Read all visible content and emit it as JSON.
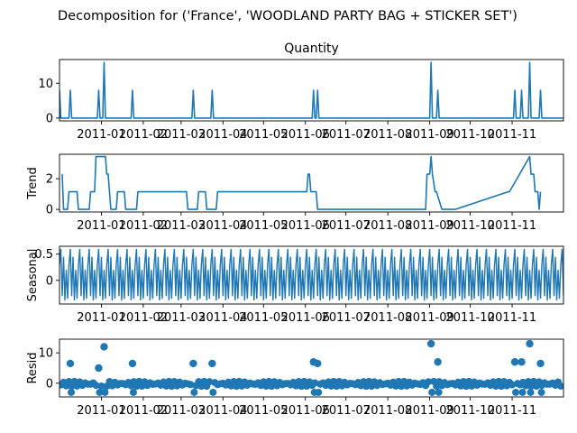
{
  "figure": {
    "suptitle": "Decomposition for ('France', 'WOODLAND PARTY BAG + STICKER SET')",
    "line_color": "#1f77b4"
  },
  "chart_data": [
    {
      "type": "line",
      "panel": "observed",
      "title": "Quantity",
      "ylabel": "",
      "ylim": [
        -0.8,
        16.8
      ],
      "yticks": [
        0,
        10
      ],
      "xlim": [
        "2010-12-01",
        "2011-12-09"
      ],
      "xticks": [
        "2011-01",
        "2011-02",
        "2011-03",
        "2011-04",
        "2011-05",
        "2011-06",
        "2011-07",
        "2011-08",
        "2011-09",
        "2011-10",
        "2011-11"
      ],
      "baseline": 0,
      "spikes": [
        {
          "x": "2010-12-01",
          "y": 8
        },
        {
          "x": "2010-12-09",
          "y": 8
        },
        {
          "x": "2010-12-30",
          "y": 8
        },
        {
          "x": "2011-01-03",
          "y": 16
        },
        {
          "x": "2011-01-24",
          "y": 8
        },
        {
          "x": "2011-03-10",
          "y": 8
        },
        {
          "x": "2011-03-24",
          "y": 8
        },
        {
          "x": "2011-06-07",
          "y": 8
        },
        {
          "x": "2011-06-10",
          "y": 8
        },
        {
          "x": "2011-09-02",
          "y": 16
        },
        {
          "x": "2011-09-07",
          "y": 8
        },
        {
          "x": "2011-11-03",
          "y": 8
        },
        {
          "x": "2011-11-08",
          "y": 8
        },
        {
          "x": "2011-11-14",
          "y": 16
        },
        {
          "x": "2011-11-22",
          "y": 8
        }
      ]
    },
    {
      "type": "line",
      "panel": "trend",
      "ylabel": "Trend",
      "ylim": [
        -0.17,
        3.6
      ],
      "yticks": [
        0,
        2
      ],
      "xlim": [
        "2010-12-01",
        "2011-12-09"
      ],
      "xticks": [
        "2011-01",
        "2011-02",
        "2011-03",
        "2011-04",
        "2011-05",
        "2011-06",
        "2011-07",
        "2011-08",
        "2011-09",
        "2011-10",
        "2011-11"
      ],
      "x": [
        "2010-12-03",
        "2010-12-04",
        "2010-12-07",
        "2010-12-08",
        "2010-12-14",
        "2010-12-15",
        "2010-12-23",
        "2010-12-24",
        "2010-12-27",
        "2010-12-28",
        "2011-01-04",
        "2011-01-05",
        "2011-01-06",
        "2011-01-07",
        "2011-01-08",
        "2011-01-12",
        "2011-01-13",
        "2011-01-18",
        "2011-01-19",
        "2011-01-27",
        "2011-01-28",
        "2011-03-05",
        "2011-03-06",
        "2011-03-13",
        "2011-03-14",
        "2011-03-19",
        "2011-03-20",
        "2011-03-27",
        "2011-03-28",
        "2011-06-02",
        "2011-06-03",
        "2011-06-04",
        "2011-06-05",
        "2011-06-09",
        "2011-06-10",
        "2011-06-12",
        "2011-06-13",
        "2011-06-16",
        "2011-06-17",
        "2011-08-29",
        "2011-08-30",
        "2011-09-01",
        "2011-09-02",
        "2011-09-03",
        "2011-09-05",
        "2011-09-06",
        "2011-09-10",
        "2011-09-11",
        "2011-09-19",
        "2011-09-20",
        "2011-10-29",
        "2011-10-30",
        "2011-11-14",
        "2011-11-15",
        "2011-11-17",
        "2011-11-18",
        "2011-11-20",
        "2011-11-21",
        "2011-11-22"
      ],
      "values": [
        2.3,
        0,
        0,
        1.15,
        1.15,
        0,
        0,
        1.15,
        1.15,
        3.45,
        3.45,
        2.3,
        2.3,
        1.15,
        0,
        0,
        1.15,
        1.15,
        0,
        0,
        1.15,
        1.15,
        0,
        0,
        1.15,
        1.15,
        0,
        0,
        1.15,
        1.15,
        2.3,
        2.3,
        1.15,
        1.15,
        0,
        0,
        0,
        0,
        0,
        0,
        2.3,
        2.3,
        3.45,
        2.3,
        1.15,
        1.15,
        0,
        0,
        0,
        0,
        1.15,
        1.15,
        3.45,
        2.3,
        2.3,
        1.15,
        1.15,
        0,
        1.15
      ]
    },
    {
      "type": "line",
      "panel": "seasonal",
      "ylabel": "Seasonal",
      "ylim": [
        -0.45,
        0.65
      ],
      "yticks": [
        0.0,
        0.5
      ],
      "xlim": [
        "2010-12-01",
        "2011-12-09"
      ],
      "xticks": [
        "2011-01",
        "2011-02",
        "2011-03",
        "2011-04",
        "2011-05",
        "2011-06",
        "2011-07",
        "2011-08",
        "2011-09",
        "2011-10",
        "2011-11"
      ],
      "period": 7,
      "pattern": [
        0.6,
        -0.3,
        0.45,
        -0.38,
        0.2,
        -0.35,
        0.3
      ]
    },
    {
      "type": "scatter",
      "panel": "resid",
      "ylabel": "Resid",
      "ylim": [
        -4.5,
        14.5
      ],
      "yticks": [
        0,
        10
      ],
      "xlim": [
        "2010-12-01",
        "2011-12-09"
      ],
      "xticks": [
        "2011-01",
        "2011-02",
        "2011-03",
        "2011-04",
        "2011-05",
        "2011-06",
        "2011-07",
        "2011-08",
        "2011-09",
        "2011-10",
        "2011-11"
      ],
      "outliers": [
        {
          "x": "2010-12-09",
          "y": 6.5
        },
        {
          "x": "2010-12-30",
          "y": 5.0
        },
        {
          "x": "2011-01-03",
          "y": 12.0
        },
        {
          "x": "2011-01-24",
          "y": 6.5
        },
        {
          "x": "2011-03-10",
          "y": 6.5
        },
        {
          "x": "2011-03-24",
          "y": 6.5
        },
        {
          "x": "2011-06-07",
          "y": 7.0
        },
        {
          "x": "2011-06-10",
          "y": 6.5
        },
        {
          "x": "2011-09-02",
          "y": 13.0
        },
        {
          "x": "2011-09-07",
          "y": 7.0
        },
        {
          "x": "2011-11-03",
          "y": 7.0
        },
        {
          "x": "2011-11-08",
          "y": 7.0
        },
        {
          "x": "2011-11-14",
          "y": 13.0
        },
        {
          "x": "2011-11-22",
          "y": 6.5
        }
      ]
    }
  ]
}
